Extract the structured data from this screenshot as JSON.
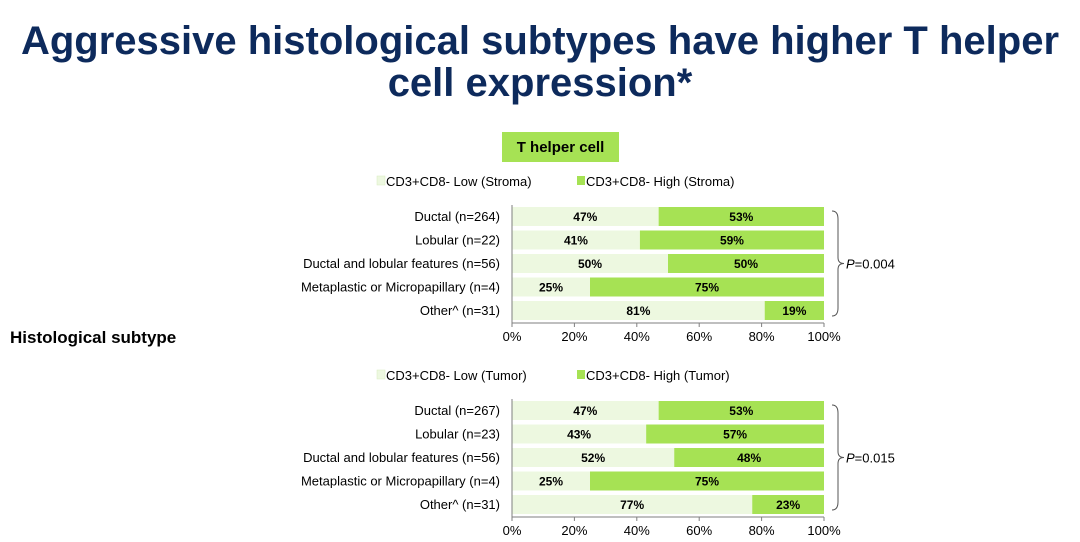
{
  "title": "Aggressive histological subtypes have higher T helper cell expression*",
  "badge": "T helper cell",
  "side_label": "Histological subtype",
  "colors": {
    "low": "#edf8e0",
    "high": "#a6e254",
    "title": "#0d2a5c"
  },
  "chart_data": [
    {
      "type": "bar",
      "orientation": "horizontal-stacked-100",
      "categories": [
        "Ductal (n=264)",
        "Lobular (n=22)",
        "Ductal and lobular features (n=56)",
        "Metaplastic or Micropapillary (n=4)",
        "Other^ (n=31)"
      ],
      "series": [
        {
          "name": "CD3+CD8- Low (Stroma)",
          "values": [
            47,
            41,
            50,
            25,
            81
          ]
        },
        {
          "name": "CD3+CD8- High (Stroma)",
          "values": [
            53,
            59,
            50,
            75,
            19
          ]
        }
      ],
      "xticks": [
        "0%",
        "20%",
        "40%",
        "60%",
        "80%",
        "100%"
      ],
      "xlim": [
        0,
        100
      ],
      "annotation": {
        "italic": "P",
        "rest": "=0.004"
      },
      "legend": "top"
    },
    {
      "type": "bar",
      "orientation": "horizontal-stacked-100",
      "categories": [
        "Ductal (n=267)",
        "Lobular (n=23)",
        "Ductal and lobular features (n=56)",
        "Metaplastic or Micropapillary (n=4)",
        "Other^ (n=31)"
      ],
      "series": [
        {
          "name": "CD3+CD8- Low (Tumor)",
          "values": [
            47,
            43,
            52,
            25,
            77
          ]
        },
        {
          "name": "CD3+CD8- High (Tumor)",
          "values": [
            53,
            57,
            48,
            75,
            23
          ]
        }
      ],
      "xticks": [
        "0%",
        "20%",
        "40%",
        "60%",
        "80%",
        "100%"
      ],
      "xlim": [
        0,
        100
      ],
      "annotation": {
        "italic": "P",
        "rest": "=0.015"
      },
      "legend": "top"
    }
  ]
}
